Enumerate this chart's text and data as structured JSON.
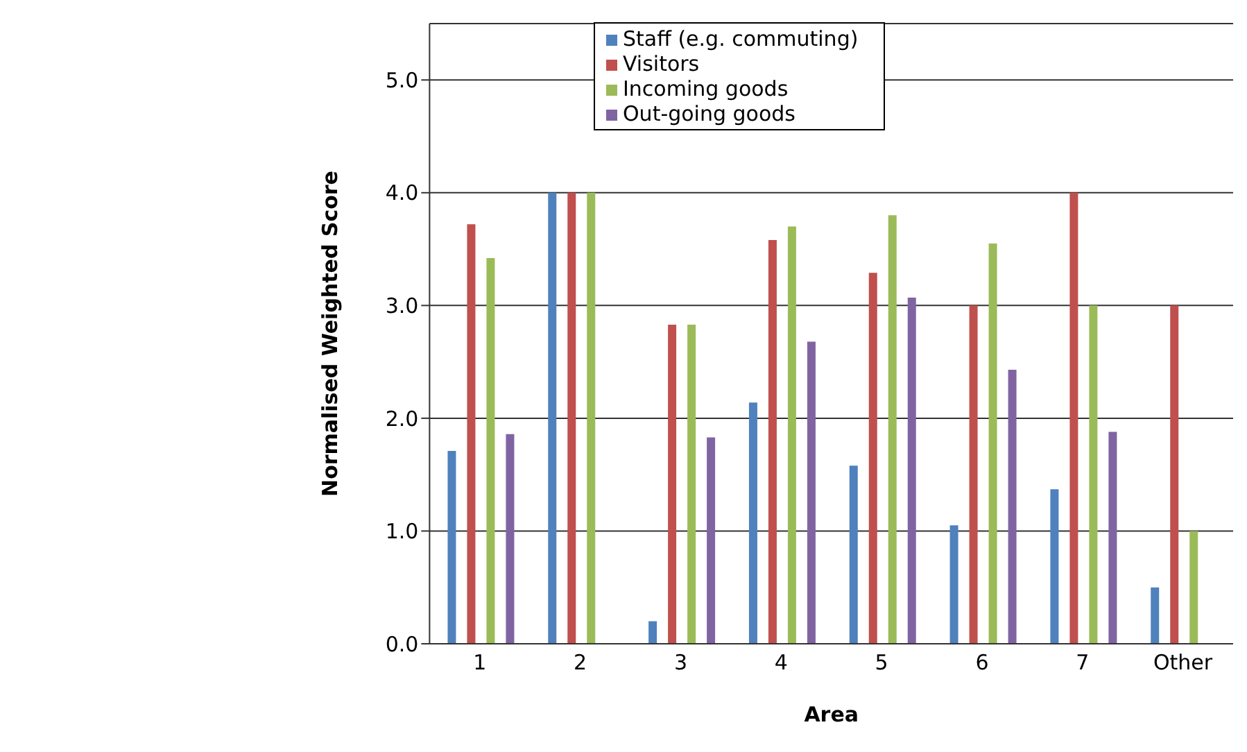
{
  "chart_data": {
    "type": "bar",
    "xlabel": "Area",
    "ylabel": "Normalised Weighted Score",
    "categories": [
      "1",
      "2",
      "3",
      "4",
      "5",
      "6",
      "7",
      "Other"
    ],
    "series": [
      {
        "name": "Staff (e.g. commuting)",
        "color": "#4f81bd",
        "values": [
          1.71,
          4.0,
          0.2,
          2.14,
          1.58,
          1.05,
          1.37,
          0.5
        ]
      },
      {
        "name": "Visitors",
        "color": "#c0504d",
        "values": [
          3.72,
          4.0,
          2.83,
          3.58,
          3.29,
          3.0,
          4.0,
          3.0
        ]
      },
      {
        "name": "Incoming goods",
        "color": "#9bbb59",
        "values": [
          3.42,
          4.0,
          2.83,
          3.7,
          3.8,
          3.55,
          3.0,
          1.0
        ]
      },
      {
        "name": "Out-going goods",
        "color": "#8064a2",
        "values": [
          1.86,
          0,
          1.83,
          2.68,
          3.07,
          2.43,
          1.88,
          0
        ]
      }
    ],
    "ylim": [
      0,
      5.5
    ],
    "yticks": [
      {
        "value": 0,
        "label": "0.0"
      },
      {
        "value": 1,
        "label": "1.0"
      },
      {
        "value": 2,
        "label": "2.0"
      },
      {
        "value": 3,
        "label": "3.0"
      },
      {
        "value": 4,
        "label": "4.0"
      },
      {
        "value": 5,
        "label": "5.0"
      }
    ],
    "grid": "y",
    "legend": "top"
  }
}
